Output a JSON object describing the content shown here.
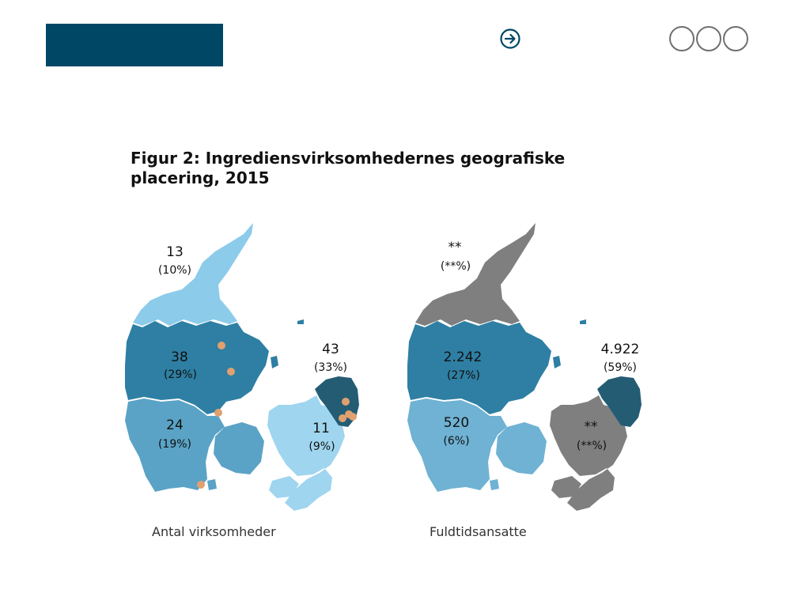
{
  "header": {
    "brand_color": "#004766",
    "next_icon": "arrow-right-circle-icon",
    "menu_icon": "three-circles-icon"
  },
  "figure": {
    "title": "Figur 2: Ingrediensvirksomhedernes geografiske placering, 2015",
    "colors": {
      "very_light": "#9fd5ee",
      "light": "#8ccbea",
      "mid_light": "#6fb2d3",
      "mid": "#5aa3c6",
      "dark": "#2e7fa3",
      "darkest": "#245c74",
      "gray": "#7f7f7f",
      "marker": "#e0a070"
    },
    "left_map": {
      "caption": "Antal virksomheder",
      "regions": {
        "nordjylland": {
          "num": "13",
          "pct": "(10%)"
        },
        "midtjylland": {
          "num": "38",
          "pct": "(29%)"
        },
        "syddanmark": {
          "num": "24",
          "pct": "(19%)"
        },
        "hovedstaden": {
          "num": "43",
          "pct": "(33%)"
        },
        "sjaelland": {
          "num": "11",
          "pct": "(9%)"
        }
      }
    },
    "right_map": {
      "caption": "Fuldtidsansatte",
      "regions": {
        "nordjylland": {
          "num": "**",
          "pct": "(**%)"
        },
        "midtjylland": {
          "num": "2.242",
          "pct": "(27%)"
        },
        "syddanmark": {
          "num": "520",
          "pct": "(6%)"
        },
        "hovedstaden": {
          "num": "4.922",
          "pct": "(59%)"
        },
        "sjaelland": {
          "num": "**",
          "pct": "(**%)"
        }
      }
    }
  }
}
